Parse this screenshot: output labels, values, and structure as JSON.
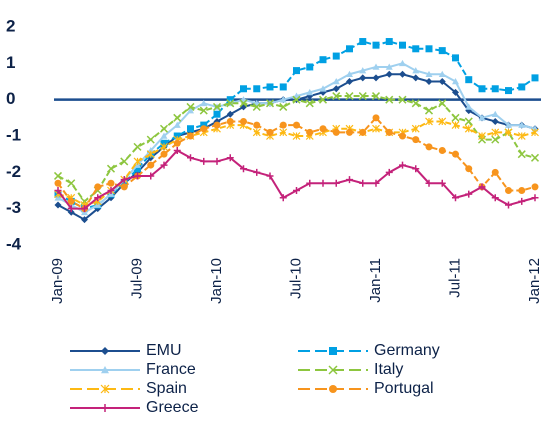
{
  "chart_data": {
    "type": "line",
    "categories": [
      "Jan-09",
      null,
      null,
      null,
      null,
      null,
      "Jul-09",
      null,
      null,
      null,
      null,
      null,
      "Jan-10",
      null,
      null,
      null,
      null,
      null,
      "Jul-10",
      null,
      null,
      null,
      null,
      null,
      "Jan-11",
      null,
      null,
      null,
      null,
      null,
      "Jul-11",
      null,
      null,
      null,
      null,
      null,
      "Jan-12"
    ],
    "ylim": [
      -4,
      2
    ],
    "yticks": [
      -4,
      -3,
      -2,
      -1,
      0,
      1,
      2
    ],
    "series": [
      {
        "name": "EMU",
        "color": "#1c4e8f",
        "marker": "diamond",
        "dashed": false,
        "values": [
          -2.9,
          -3.1,
          -3.3,
          -3.0,
          -2.7,
          -2.3,
          -2.0,
          -1.6,
          -1.3,
          -1.0,
          -0.9,
          -0.8,
          -0.6,
          -0.4,
          -0.2,
          -0.1,
          -0.1,
          0.0,
          0.0,
          0.1,
          0.2,
          0.3,
          0.5,
          0.6,
          0.6,
          0.7,
          0.7,
          0.6,
          0.5,
          0.5,
          0.2,
          -0.3,
          -0.5,
          -0.6,
          -0.7,
          -0.7,
          -0.8
        ]
      },
      {
        "name": "Germany",
        "color": "#00a0e3",
        "marker": "square",
        "dashed": true,
        "values": [
          -2.6,
          -2.8,
          -3.0,
          -2.9,
          -2.6,
          -2.3,
          -1.9,
          -1.5,
          -1.2,
          -1.0,
          -0.8,
          -0.7,
          -0.4,
          0.0,
          0.3,
          0.3,
          0.35,
          0.35,
          0.8,
          0.9,
          1.1,
          1.2,
          1.4,
          1.6,
          1.5,
          1.6,
          1.5,
          1.4,
          1.4,
          1.35,
          1.15,
          0.55,
          0.3,
          0.3,
          0.25,
          0.35,
          0.6
        ]
      },
      {
        "name": "France",
        "color": "#9fd0ef",
        "marker": "triangle",
        "dashed": false,
        "values": [
          -2.7,
          -2.9,
          -3.1,
          -2.9,
          -2.6,
          -2.2,
          -1.8,
          -1.4,
          -1.0,
          -0.7,
          -0.3,
          -0.1,
          -0.2,
          -0.1,
          0.0,
          -0.1,
          -0.1,
          0.0,
          0.1,
          0.2,
          0.3,
          0.5,
          0.7,
          0.8,
          0.9,
          0.9,
          1.0,
          0.8,
          0.7,
          0.7,
          0.5,
          -0.2,
          -0.5,
          -0.4,
          -0.7,
          -0.7,
          -0.8
        ]
      },
      {
        "name": "Italy",
        "color": "#8dc63f",
        "marker": "x",
        "dashed": true,
        "values": [
          -2.1,
          -2.3,
          -2.8,
          -2.5,
          -1.9,
          -1.7,
          -1.3,
          -1.1,
          -0.8,
          -0.5,
          -0.2,
          -0.3,
          -0.2,
          -0.1,
          -0.1,
          -0.2,
          -0.1,
          -0.2,
          0.0,
          -0.1,
          0.0,
          0.1,
          0.1,
          0.1,
          0.1,
          0.0,
          0.0,
          -0.1,
          -0.3,
          -0.1,
          -0.5,
          -0.6,
          -1.1,
          -1.1,
          -0.9,
          -1.5,
          -1.6
        ]
      },
      {
        "name": "Spain",
        "color": "#fdb913",
        "marker": "asterisk",
        "dashed": true,
        "values": [
          -2.6,
          -2.7,
          -2.9,
          -2.8,
          -2.5,
          -2.2,
          -1.7,
          -1.5,
          -1.3,
          -1.1,
          -1.0,
          -0.9,
          -0.8,
          -0.7,
          -0.7,
          -0.9,
          -1.0,
          -0.9,
          -1.0,
          -1.0,
          -0.9,
          -0.8,
          -0.8,
          -0.9,
          -0.8,
          -0.9,
          -0.9,
          -0.8,
          -0.6,
          -0.6,
          -0.7,
          -0.8,
          -1.0,
          -0.9,
          -0.9,
          -1.0,
          -0.9
        ]
      },
      {
        "name": "Portugal",
        "color": "#f7941d",
        "marker": "circle",
        "dashed": true,
        "values": [
          -2.3,
          -2.8,
          -3.0,
          -2.4,
          -2.3,
          -2.4,
          -2.1,
          -1.8,
          -1.5,
          -1.2,
          -1.0,
          -0.8,
          -0.7,
          -0.6,
          -0.6,
          -0.7,
          -0.9,
          -0.7,
          -0.7,
          -0.9,
          -0.8,
          -0.9,
          -0.9,
          -0.9,
          -0.5,
          -0.9,
          -1.0,
          -1.1,
          -1.3,
          -1.4,
          -1.5,
          -1.9,
          -2.4,
          -2.0,
          -2.5,
          -2.5,
          -2.4
        ]
      },
      {
        "name": "Greece",
        "color": "#c4227a",
        "marker": "plus",
        "dashed": false,
        "values": [
          -2.5,
          -3.0,
          -3.0,
          -2.7,
          -2.5,
          -2.2,
          -2.1,
          -2.1,
          -1.8,
          -1.4,
          -1.6,
          -1.7,
          -1.7,
          -1.6,
          -1.9,
          -2.0,
          -2.1,
          -2.7,
          -2.5,
          -2.3,
          -2.3,
          -2.3,
          -2.2,
          -2.3,
          -2.3,
          -2.0,
          -1.8,
          -1.9,
          -2.3,
          -2.3,
          -2.7,
          -2.6,
          -2.4,
          -2.7,
          -2.9,
          -2.8,
          -2.7
        ]
      }
    ]
  }
}
